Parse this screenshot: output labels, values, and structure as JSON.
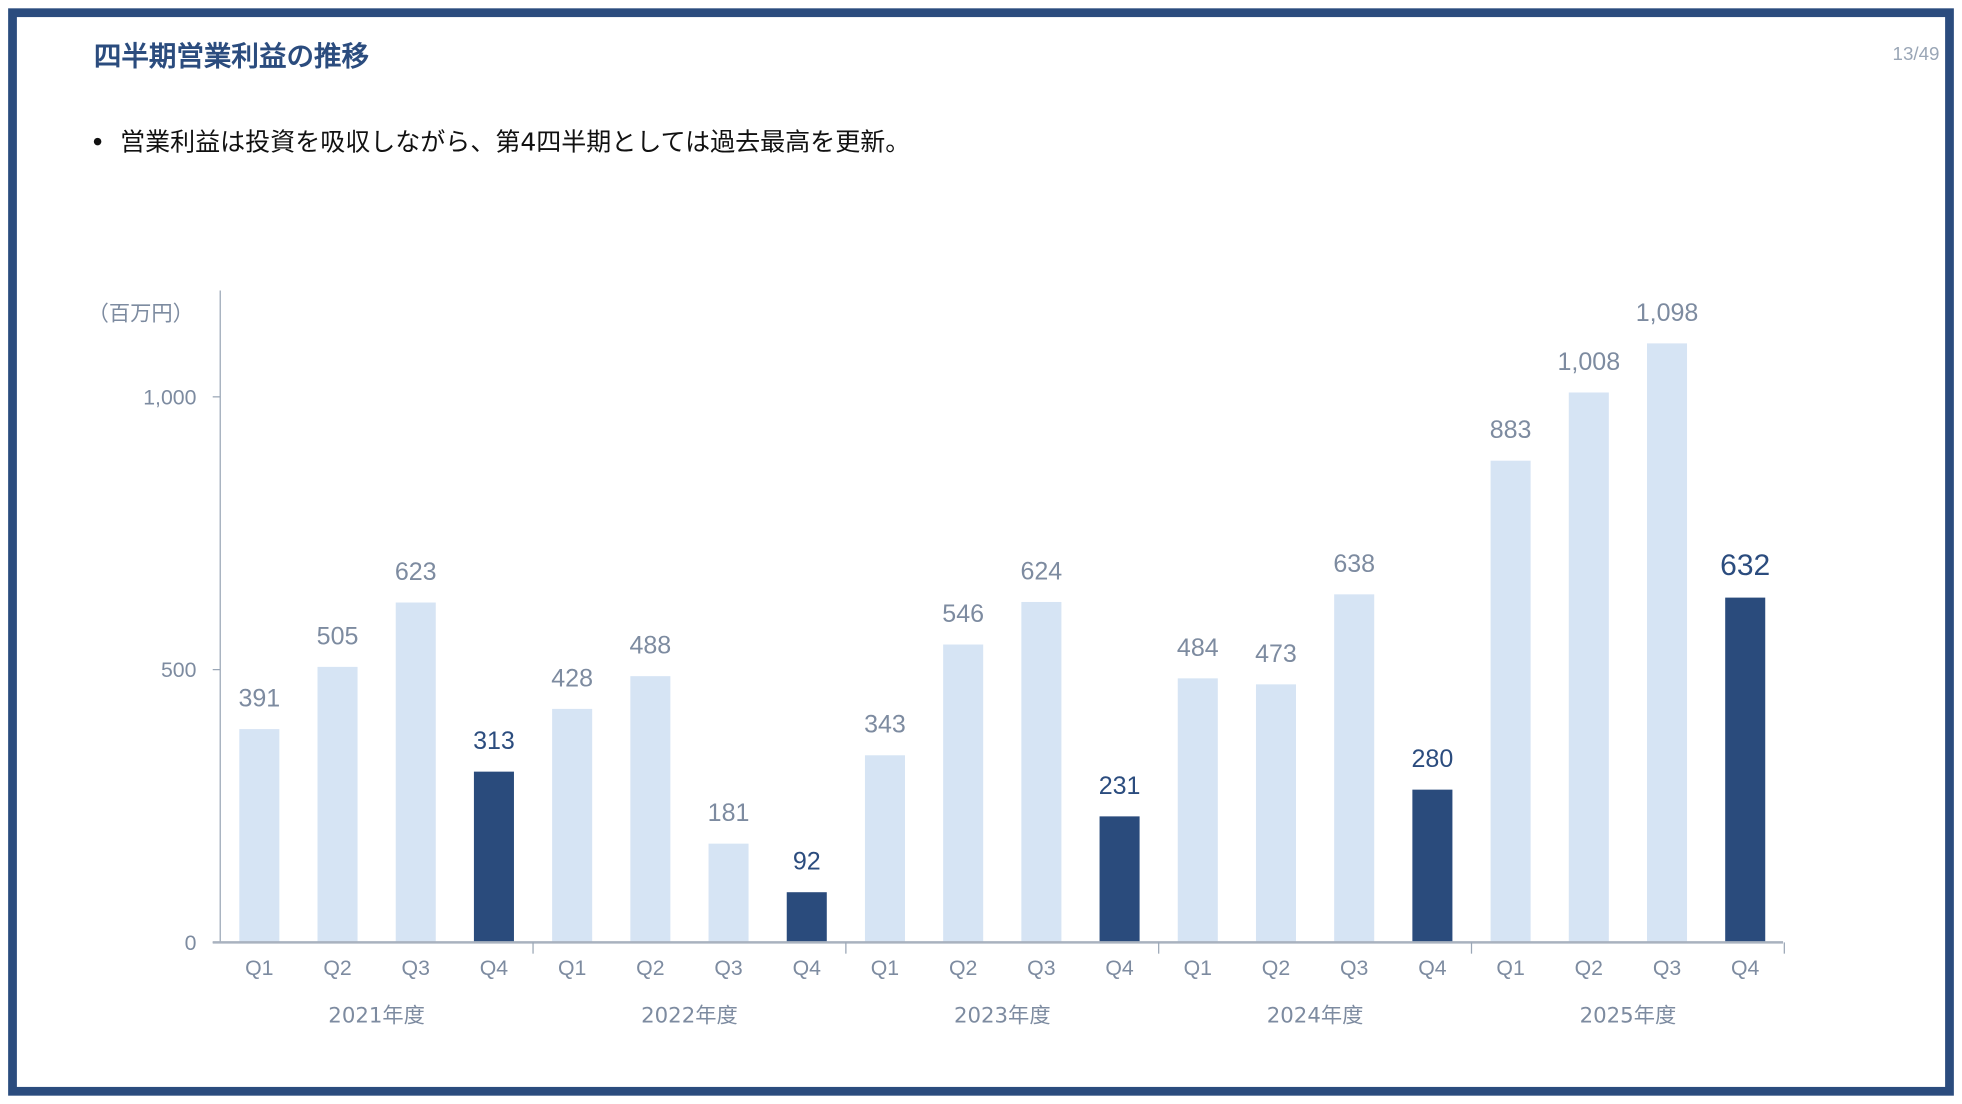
{
  "slide": {
    "title": "四半期営業利益の推移",
    "page_number": "13/49",
    "bullet": "営業利益は投資を吸収しながら、第4四半期としては過去最高を更新。",
    "colors": {
      "frame": "#2b4c7e",
      "highlight_bar": "#2a4b7c",
      "normal_bar": "#d6e4f4"
    }
  },
  "chart_data": {
    "type": "bar",
    "unit_label": "（百万円）",
    "ylim": [
      0,
      1200
    ],
    "yticks": [
      "0",
      "500",
      "1,000"
    ],
    "ytick_values": [
      0,
      500,
      1000
    ],
    "grid": false,
    "legend": "none",
    "groups": [
      "2021年度",
      "2022年度",
      "2023年度",
      "2024年度",
      "2025年度"
    ],
    "categories": [
      "Q1",
      "Q2",
      "Q3",
      "Q4",
      "Q1",
      "Q2",
      "Q3",
      "Q4",
      "Q1",
      "Q2",
      "Q3",
      "Q4",
      "Q1",
      "Q2",
      "Q3",
      "Q4",
      "Q1",
      "Q2",
      "Q3",
      "Q4"
    ],
    "values": [
      391,
      505,
      623,
      313,
      428,
      488,
      181,
      92,
      343,
      546,
      624,
      231,
      484,
      473,
      638,
      280,
      883,
      1008,
      1098,
      632
    ],
    "value_labels": [
      "391",
      "505",
      "623",
      "313",
      "428",
      "488",
      "181",
      "92",
      "343",
      "546",
      "624",
      "231",
      "484",
      "473",
      "638",
      "280",
      "883",
      "1,008",
      "1,098",
      "632"
    ],
    "highlight": "Q4"
  }
}
